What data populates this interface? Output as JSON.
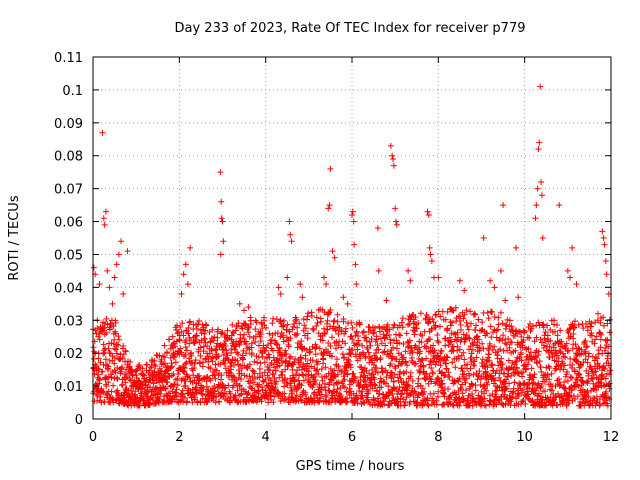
{
  "chart_data": {
    "type": "scatter",
    "title": "Day 233 of 2023, Rate Of TEC Index for receiver p779",
    "xlabel": "GPS time / hours",
    "ylabel": "ROTI / TECUs",
    "xlim": [
      0,
      12
    ],
    "ylim": [
      0,
      0.11
    ],
    "x_ticks": [
      0,
      2,
      4,
      6,
      8,
      10,
      12
    ],
    "x_tick_labels": [
      "0",
      "2",
      "4",
      "6",
      "8",
      "10",
      "12"
    ],
    "y_ticks": [
      0,
      0.01,
      0.02,
      0.03,
      0.04,
      0.05,
      0.06,
      0.07,
      0.08,
      0.09,
      0.1,
      0.11
    ],
    "y_tick_labels": [
      "0",
      "0.01",
      "0.02",
      "0.03",
      "0.04",
      "0.05",
      "0.06",
      "0.07",
      "0.08",
      "0.09",
      "0.1",
      "0.11"
    ],
    "grid": true,
    "marker": "+",
    "series_color": "#ff0000",
    "series": [
      {
        "name": "ROTI",
        "points": [
          [
            0.02,
            0.046
          ],
          [
            0.05,
            0.044
          ],
          [
            0.1,
            0.03
          ],
          [
            0.12,
            0.025
          ],
          [
            0.18,
            0.028
          ],
          [
            0.22,
            0.087
          ],
          [
            0.25,
            0.061
          ],
          [
            0.27,
            0.059
          ],
          [
            0.3,
            0.063
          ],
          [
            0.33,
            0.045
          ],
          [
            0.38,
            0.04
          ],
          [
            0.45,
            0.035
          ],
          [
            0.5,
            0.043
          ],
          [
            0.55,
            0.047
          ],
          [
            0.6,
            0.05
          ],
          [
            0.65,
            0.054
          ],
          [
            0.7,
            0.038
          ],
          [
            0.8,
            0.051
          ],
          [
            0.15,
            0.041
          ],
          [
            0.4,
            0.029
          ],
          [
            2.1,
            0.044
          ],
          [
            2.15,
            0.047
          ],
          [
            2.2,
            0.041
          ],
          [
            2.25,
            0.052
          ],
          [
            2.05,
            0.038
          ],
          [
            2.95,
            0.075
          ],
          [
            2.97,
            0.066
          ],
          [
            2.98,
            0.061
          ],
          [
            3.0,
            0.06
          ],
          [
            3.02,
            0.054
          ],
          [
            2.96,
            0.05
          ],
          [
            3.4,
            0.035
          ],
          [
            3.5,
            0.033
          ],
          [
            3.6,
            0.034
          ],
          [
            4.3,
            0.04
          ],
          [
            4.35,
            0.038
          ],
          [
            4.55,
            0.06
          ],
          [
            4.57,
            0.056
          ],
          [
            4.6,
            0.054
          ],
          [
            4.5,
            0.043
          ],
          [
            4.8,
            0.041
          ],
          [
            4.85,
            0.037
          ],
          [
            5.35,
            0.043
          ],
          [
            5.4,
            0.041
          ],
          [
            5.45,
            0.064
          ],
          [
            5.48,
            0.065
          ],
          [
            5.5,
            0.076
          ],
          [
            5.55,
            0.051
          ],
          [
            5.6,
            0.049
          ],
          [
            5.8,
            0.037
          ],
          [
            5.9,
            0.035
          ],
          [
            6.0,
            0.062
          ],
          [
            6.02,
            0.063
          ],
          [
            6.04,
            0.06
          ],
          [
            6.05,
            0.053
          ],
          [
            6.08,
            0.047
          ],
          [
            6.1,
            0.041
          ],
          [
            6.6,
            0.058
          ],
          [
            6.62,
            0.045
          ],
          [
            6.8,
            0.036
          ],
          [
            6.9,
            0.083
          ],
          [
            6.93,
            0.08
          ],
          [
            6.95,
            0.079
          ],
          [
            6.97,
            0.077
          ],
          [
            7.0,
            0.064
          ],
          [
            7.02,
            0.06
          ],
          [
            7.04,
            0.059
          ],
          [
            7.3,
            0.045
          ],
          [
            7.35,
            0.042
          ],
          [
            7.75,
            0.063
          ],
          [
            7.78,
            0.062
          ],
          [
            7.8,
            0.052
          ],
          [
            7.82,
            0.05
          ],
          [
            7.85,
            0.048
          ],
          [
            7.9,
            0.043
          ],
          [
            8.0,
            0.043
          ],
          [
            8.5,
            0.042
          ],
          [
            8.6,
            0.039
          ],
          [
            9.05,
            0.055
          ],
          [
            9.2,
            0.042
          ],
          [
            9.3,
            0.04
          ],
          [
            9.45,
            0.045
          ],
          [
            9.5,
            0.065
          ],
          [
            9.55,
            0.036
          ],
          [
            9.8,
            0.052
          ],
          [
            9.85,
            0.037
          ],
          [
            10.25,
            0.061
          ],
          [
            10.27,
            0.065
          ],
          [
            10.3,
            0.07
          ],
          [
            10.32,
            0.082
          ],
          [
            10.34,
            0.084
          ],
          [
            10.36,
            0.101
          ],
          [
            10.38,
            0.072
          ],
          [
            10.4,
            0.068
          ],
          [
            10.42,
            0.055
          ],
          [
            10.8,
            0.065
          ],
          [
            11.0,
            0.045
          ],
          [
            11.05,
            0.043
          ],
          [
            11.1,
            0.052
          ],
          [
            11.2,
            0.041
          ],
          [
            11.8,
            0.057
          ],
          [
            11.83,
            0.055
          ],
          [
            11.85,
            0.053
          ],
          [
            11.88,
            0.048
          ],
          [
            11.9,
            0.044
          ],
          [
            11.95,
            0.038
          ],
          [
            11.7,
            0.032
          ]
        ],
        "dense_band": {
          "description": "thousands of closely packed points",
          "profile": [
            [
              0.0,
              0.005,
              0.03
            ],
            [
              0.5,
              0.005,
              0.031
            ],
            [
              0.85,
              0.004,
              0.018
            ],
            [
              1.2,
              0.004,
              0.016
            ],
            [
              1.6,
              0.005,
              0.022
            ],
            [
              2.0,
              0.005,
              0.03
            ],
            [
              2.5,
              0.005,
              0.03
            ],
            [
              3.0,
              0.005,
              0.027
            ],
            [
              3.5,
              0.005,
              0.032
            ],
            [
              4.0,
              0.005,
              0.031
            ],
            [
              4.5,
              0.005,
              0.03
            ],
            [
              5.0,
              0.005,
              0.033
            ],
            [
              5.5,
              0.005,
              0.034
            ],
            [
              6.0,
              0.005,
              0.03
            ],
            [
              6.5,
              0.004,
              0.028
            ],
            [
              7.0,
              0.004,
              0.03
            ],
            [
              7.5,
              0.004,
              0.032
            ],
            [
              8.0,
              0.004,
              0.033
            ],
            [
              8.5,
              0.004,
              0.034
            ],
            [
              9.0,
              0.004,
              0.033
            ],
            [
              9.5,
              0.004,
              0.033
            ],
            [
              9.9,
              0.004,
              0.027
            ],
            [
              10.2,
              0.004,
              0.03
            ],
            [
              10.6,
              0.004,
              0.03
            ],
            [
              11.0,
              0.004,
              0.03
            ],
            [
              11.5,
              0.004,
              0.03
            ],
            [
              11.95,
              0.004,
              0.032
            ]
          ]
        }
      }
    ]
  }
}
